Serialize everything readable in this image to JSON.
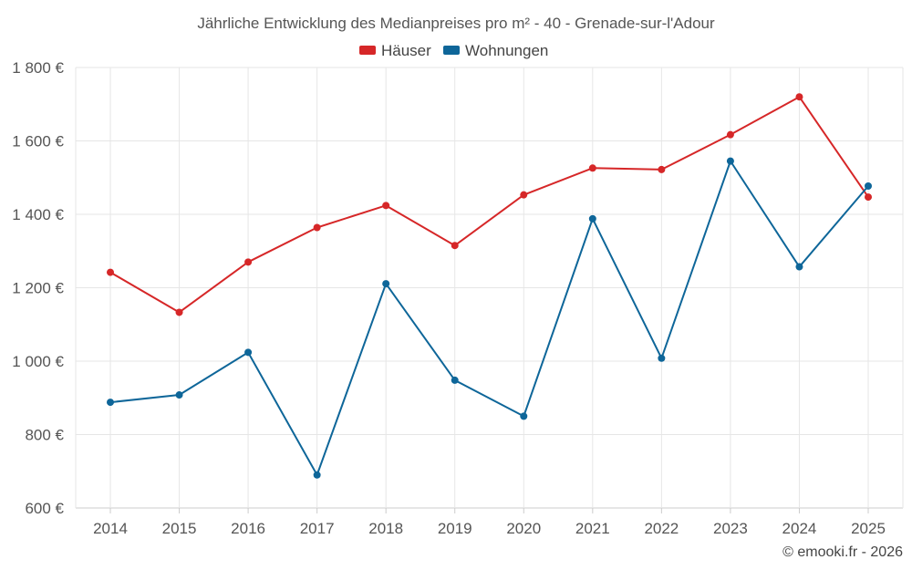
{
  "chart_data": {
    "type": "line",
    "title": "Jährliche Entwicklung des Medianpreises pro m² - 40 - Grenade-sur-l'Adour",
    "categories": [
      "2014",
      "2015",
      "2016",
      "2017",
      "2018",
      "2019",
      "2020",
      "2021",
      "2022",
      "2023",
      "2024",
      "2025"
    ],
    "series": [
      {
        "name": "Häuser",
        "color": "#d62728",
        "values": [
          1242,
          1133,
          1270,
          1364,
          1424,
          1315,
          1453,
          1526,
          1522,
          1617,
          1720,
          1447
        ]
      },
      {
        "name": "Wohnungen",
        "color": "#0e6699",
        "values": [
          888,
          908,
          1024,
          690,
          1211,
          948,
          850,
          1388,
          1008,
          1545,
          1257,
          1477
        ]
      }
    ],
    "ylim": [
      600,
      1800
    ],
    "yticks": [
      600,
      800,
      1000,
      1200,
      1400,
      1600,
      1800
    ],
    "ytick_labels": [
      "600 €",
      "800 €",
      "1 000 €",
      "1 200 €",
      "1 400 €",
      "1 600 €",
      "1 800 €"
    ],
    "xlabel": "",
    "ylabel": "",
    "grid": true,
    "legend_position": "top-center"
  },
  "credit": "© emooki.fr - 2026"
}
